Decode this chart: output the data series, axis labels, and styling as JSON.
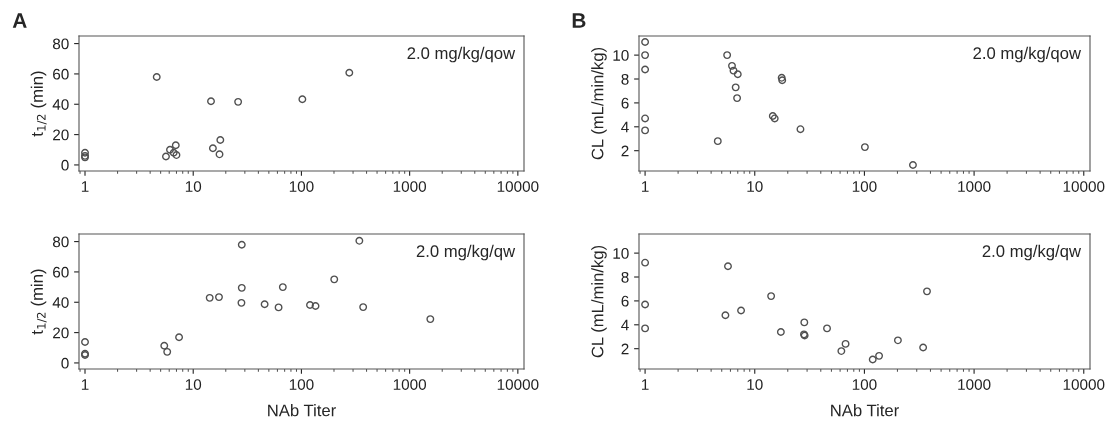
{
  "chart_data": [
    {
      "type": "scatter",
      "title": "A",
      "ylabel": "t$_{1/2}$ (min)",
      "log": "x",
      "xlim": [
        0.88,
        11400
      ],
      "xticks": [
        1,
        10,
        100,
        1000,
        10000
      ],
      "ylim": [
        -4,
        85
      ],
      "yticks": [
        0,
        20,
        40,
        60,
        80
      ],
      "marker": "circle",
      "grid": false,
      "annotations": [
        "2.0 mg/kg/qow"
      ],
      "series": [
        {
          "color": "#505050",
          "x": [
            1,
            1,
            1,
            4.6,
            5.6,
            6.1,
            6.6,
            6.9,
            7.0,
            14.6,
            15.2,
            17.8,
            17.5,
            26,
            102,
            277
          ],
          "values": [
            5,
            6,
            8,
            58,
            5.6,
            10,
            8,
            13,
            6.5,
            42,
            11,
            16.4,
            7,
            41.6,
            43.3,
            60.8
          ]
        }
      ]
    },
    {
      "type": "scatter",
      "title": "B",
      "ylabel": "CL (mL/min/kg)",
      "log": "x",
      "xlim": [
        0.88,
        11400
      ],
      "xticks": [
        1,
        10,
        100,
        1000,
        10000
      ],
      "ylim": [
        0.3,
        11.6
      ],
      "yticks": [
        2,
        4,
        6,
        8,
        10
      ],
      "marker": "circle",
      "grid": false,
      "annotations": [
        "2.0 mg/kg/qow"
      ],
      "series": [
        {
          "color": "#505050",
          "x": [
            1,
            1,
            1,
            1,
            1,
            4.6,
            5.6,
            6.2,
            6.4,
            7.0,
            6.7,
            6.9,
            14.6,
            15.2,
            17.6,
            17.8,
            26.1,
            101,
            277
          ],
          "values": [
            11.1,
            10,
            8.8,
            4.7,
            3.7,
            2.8,
            10,
            9.1,
            8.7,
            8.4,
            7.3,
            6.4,
            4.9,
            4.7,
            8.1,
            7.9,
            3.8,
            2.3,
            0.8
          ]
        }
      ]
    },
    {
      "type": "scatter",
      "ylabel": "t$_{1/2}$ (min)",
      "xlabel": "NAb Titer",
      "log": "x",
      "xlim": [
        0.88,
        11400
      ],
      "xticks": [
        1,
        10,
        100,
        1000,
        10000
      ],
      "ylim": [
        -4,
        85
      ],
      "yticks": [
        0,
        20,
        40,
        60,
        80
      ],
      "marker": "circle",
      "grid": false,
      "annotations": [
        "2.0 mg/kg/qw"
      ],
      "series": [
        {
          "color": "#505050",
          "x": [
            1,
            1,
            1,
            5.4,
            5.75,
            7.4,
            14.2,
            17.3,
            28.1,
            28.1,
            27.9,
            45.7,
            61.5,
            67.3,
            120,
            135,
            201,
            343,
            372,
            1553
          ],
          "values": [
            13.8,
            6.1,
            5.2,
            11.3,
            7.3,
            16.9,
            42.9,
            43.4,
            77.9,
            49.5,
            39.6,
            38.7,
            36.6,
            50,
            38.2,
            37.5,
            55.1,
            80.5,
            36.8,
            28.9
          ]
        }
      ]
    },
    {
      "type": "scatter",
      "ylabel": "CL (mL/min/kg)",
      "xlabel": "NAb Titer",
      "log": "x",
      "xlim": [
        0.88,
        11400
      ],
      "xticks": [
        1,
        10,
        100,
        1000,
        10000
      ],
      "ylim": [
        0.3,
        11.6
      ],
      "yticks": [
        2,
        4,
        6,
        8,
        10
      ],
      "marker": "circle",
      "grid": false,
      "annotations": [
        "2.0 mg/kg/qw"
      ],
      "series": [
        {
          "color": "#505050",
          "x": [
            1,
            1,
            1,
            5.4,
            5.7,
            7.5,
            14.1,
            17.3,
            28.3,
            28.1,
            28.5,
            45.6,
            61.6,
            67.3,
            119,
            136,
            202,
            343,
            372
          ],
          "values": [
            9.2,
            5.7,
            3.7,
            4.8,
            8.9,
            5.2,
            6.4,
            3.4,
            4.2,
            3.2,
            3.1,
            3.7,
            1.8,
            2.4,
            1.1,
            1.4,
            2.7,
            2.1,
            6.8
          ]
        }
      ]
    }
  ]
}
